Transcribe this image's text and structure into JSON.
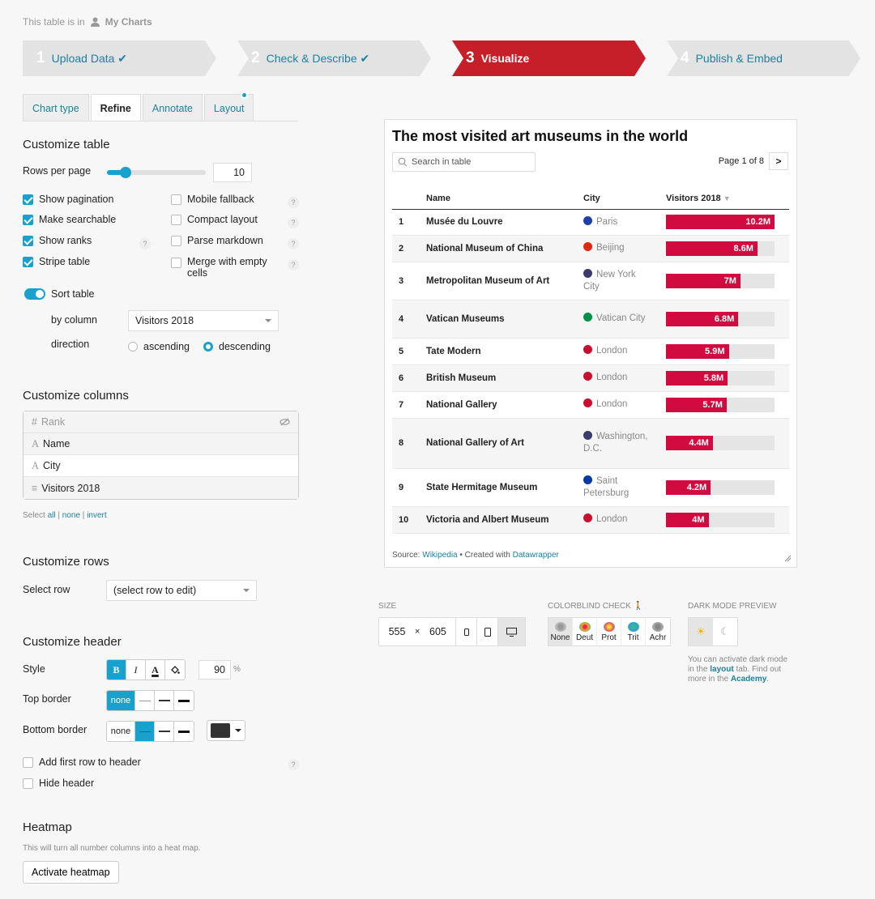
{
  "breadcrumb": {
    "prefix": "This table is in",
    "folder": "My Charts"
  },
  "steps": [
    {
      "num": "1",
      "label": "Upload Data ✔"
    },
    {
      "num": "2",
      "label": "Check & Describe ✔"
    },
    {
      "num": "3",
      "label": "Visualize"
    },
    {
      "num": "4",
      "label": "Publish & Embed"
    }
  ],
  "tabs": [
    "Chart type",
    "Refine",
    "Annotate",
    "Layout"
  ],
  "customize_table": {
    "title": "Customize table",
    "rows_per_page_label": "Rows per page",
    "rows_per_page": "10",
    "rows_per_page_slider": 0.1,
    "options_left": [
      {
        "label": "Show pagination",
        "checked": true
      },
      {
        "label": "Make searchable",
        "checked": true
      },
      {
        "label": "Show ranks",
        "checked": true
      },
      {
        "label": "Stripe table",
        "checked": true
      }
    ],
    "options_right": [
      {
        "label": "Mobile fallback",
        "checked": false
      },
      {
        "label": "Compact layout",
        "checked": false
      },
      {
        "label": "Parse markdown",
        "checked": false
      },
      {
        "label": "Merge with empty",
        "label2": "cells",
        "checked": false
      }
    ],
    "help": "?",
    "sort_label": "Sort table",
    "by_column_label": "by column",
    "by_column_value": "Visitors 2018",
    "direction_label": "direction",
    "direction_options": [
      "ascending",
      "descending"
    ],
    "direction_selected": "descending"
  },
  "customize_columns": {
    "title": "Customize columns",
    "columns": [
      {
        "icon": "#",
        "name": "Rank"
      },
      {
        "icon": "A",
        "name": "Name"
      },
      {
        "icon": "A",
        "name": "City"
      },
      {
        "icon": "≡",
        "name": "Visitors 2018"
      }
    ],
    "select_prefix": "Select",
    "select_all": "all",
    "select_none": "none",
    "select_invert": "invert",
    "sep": "|"
  },
  "customize_rows": {
    "title": "Customize rows",
    "select_label": "Select row",
    "select_value": "(select row to edit)"
  },
  "customize_header": {
    "title": "Customize header",
    "style_label": "Style",
    "bold": "B",
    "italic": "I",
    "color": "A",
    "font_size": "90",
    "font_unit": "%",
    "top_border_label": "Top border",
    "bottom_border_label": "Bottom border",
    "border_none": "none",
    "add_first_row": "Add first row to header",
    "hide_header": "Hide header",
    "border_color": "#333333"
  },
  "heatmap": {
    "title": "Heatmap",
    "desc": "This will turn all number columns into a heat map.",
    "button": "Activate heatmap"
  },
  "chart": {
    "title": "The most visited art museums in the world",
    "search_placeholder": "Search in table",
    "page_info": "Page 1 of 8",
    "next": ">",
    "columns": {
      "name": "Name",
      "city": "City",
      "visitors": "Visitors 2018"
    },
    "notes_source_label": "Source:",
    "notes_source": "Wikipedia",
    "notes_created": "• Created with",
    "notes_tool": "Datawrapper",
    "bar_color": "#d10a3f"
  },
  "chart_data": {
    "type": "table",
    "max": 10.2,
    "rows": [
      {
        "rank": "1",
        "name": "Musée du Louvre",
        "city": "Paris",
        "flag": "#1d3fa8",
        "value": 10.2,
        "label": "10.2M"
      },
      {
        "rank": "2",
        "name": "National Museum of China",
        "city": "Beijing",
        "flag": "#de2910",
        "value": 8.6,
        "label": "8.6M"
      },
      {
        "rank": "3",
        "name": "Metropolitan Museum of Art",
        "city": "New York City",
        "flag": "#3c3b6e",
        "value": 7.0,
        "label": "7M"
      },
      {
        "rank": "4",
        "name": "Vatican Museums",
        "city": "Vatican City",
        "flag": "#009246",
        "value": 6.8,
        "label": "6.8M"
      },
      {
        "rank": "5",
        "name": "Tate Modern",
        "city": "London",
        "flag": "#c8102e",
        "value": 5.9,
        "label": "5.9M"
      },
      {
        "rank": "6",
        "name": "British Museum",
        "city": "London",
        "flag": "#c8102e",
        "value": 5.8,
        "label": "5.8M"
      },
      {
        "rank": "7",
        "name": "National Gallery",
        "city": "London",
        "flag": "#c8102e",
        "value": 5.7,
        "label": "5.7M"
      },
      {
        "rank": "8",
        "name": "National Gallery of Art",
        "city": "Washington, D.C.",
        "flag": "#3c3b6e",
        "value": 4.4,
        "label": "4.4M"
      },
      {
        "rank": "9",
        "name": "State Hermitage Museum",
        "city": "Saint Petersburg",
        "flag": "#0039a6",
        "value": 4.2,
        "label": "4.2M"
      },
      {
        "rank": "10",
        "name": "Victoria and Albert Museum",
        "city": "London",
        "flag": "#c8102e",
        "value": 4.0,
        "label": "4M"
      }
    ]
  },
  "size": {
    "label": "SIZE",
    "width": "555",
    "times": "×",
    "height": "605"
  },
  "colorblind": {
    "label": "COLORBLIND CHECK",
    "modes": [
      "None",
      "Deut",
      "Prot",
      "Trit",
      "Achr"
    ]
  },
  "darkmode": {
    "label": "DARK MODE PREVIEW",
    "note1": "You can activate dark mode",
    "note2": "in the",
    "note_link": "layout",
    "note3": "tab. Find out",
    "note4": "more in the",
    "note_link2": "Academy",
    "note5": "."
  }
}
